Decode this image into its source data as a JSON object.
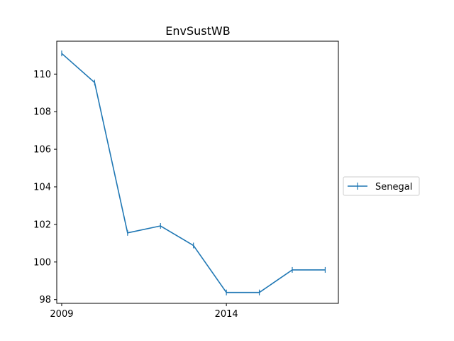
{
  "chart_data": {
    "type": "line",
    "title": "EnvSustWB",
    "xlabel": "",
    "ylabel": "",
    "x": [
      2009,
      2010,
      2011,
      2012,
      2013,
      2014,
      2015,
      2016,
      2017
    ],
    "series": [
      {
        "name": "Senegal",
        "values": [
          111.1,
          109.55,
          101.55,
          101.92,
          100.88,
          98.38,
          98.38,
          99.58,
          99.58
        ],
        "color": "#1f77b4",
        "marker": "|"
      }
    ],
    "xlim": [
      2008.85,
      2017.4
    ],
    "ylim": [
      97.8,
      111.75
    ],
    "xticks": [
      2009,
      2014
    ],
    "yticks": [
      98,
      100,
      102,
      104,
      106,
      108,
      110
    ],
    "grid": false,
    "legend_position": "right, outside plot"
  }
}
